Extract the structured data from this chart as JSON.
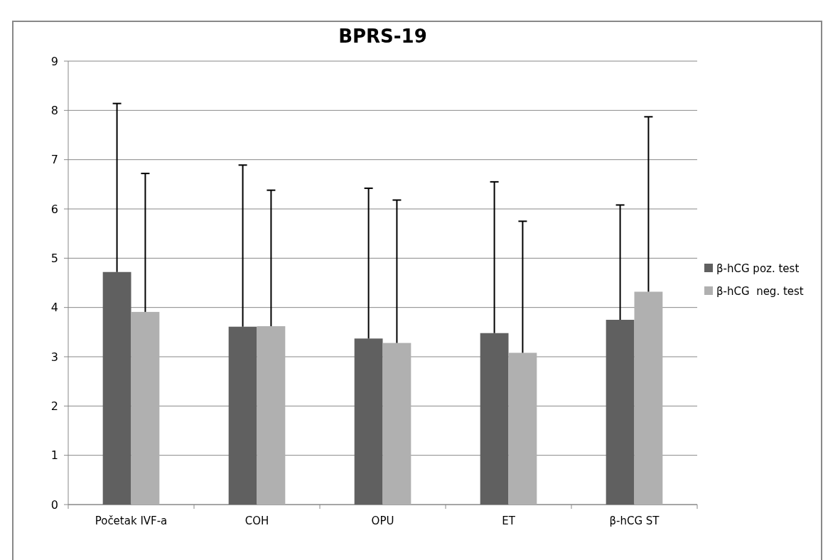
{
  "chart_data": {
    "type": "bar",
    "title": "BPRS-19",
    "categories": [
      "Početak IVF-a",
      "COH",
      "OPU",
      "ET",
      "β-hCG ST"
    ],
    "series": [
      {
        "name": "β-hCG poz. test",
        "color": "#606060",
        "values": [
          4.72,
          3.61,
          3.37,
          3.48,
          3.75
        ],
        "errors": [
          [
            4.72,
            8.14
          ],
          [
            3.61,
            6.89
          ],
          [
            3.37,
            6.42
          ],
          [
            3.48,
            6.55
          ],
          [
            3.75,
            6.08
          ]
        ]
      },
      {
        "name": "β-hCG  neg. test",
        "color": "#b0b0b0",
        "values": [
          3.91,
          3.62,
          3.28,
          3.08,
          4.32
        ],
        "errors": [
          [
            3.91,
            6.72
          ],
          [
            3.62,
            6.38
          ],
          [
            3.28,
            6.18
          ],
          [
            3.08,
            5.75
          ],
          [
            4.32,
            7.87
          ]
        ]
      }
    ],
    "ylim": [
      0,
      9
    ],
    "yticks": [
      0,
      1,
      2,
      3,
      4,
      5,
      6,
      7,
      8,
      9
    ],
    "grid": "y",
    "legend": "right"
  }
}
